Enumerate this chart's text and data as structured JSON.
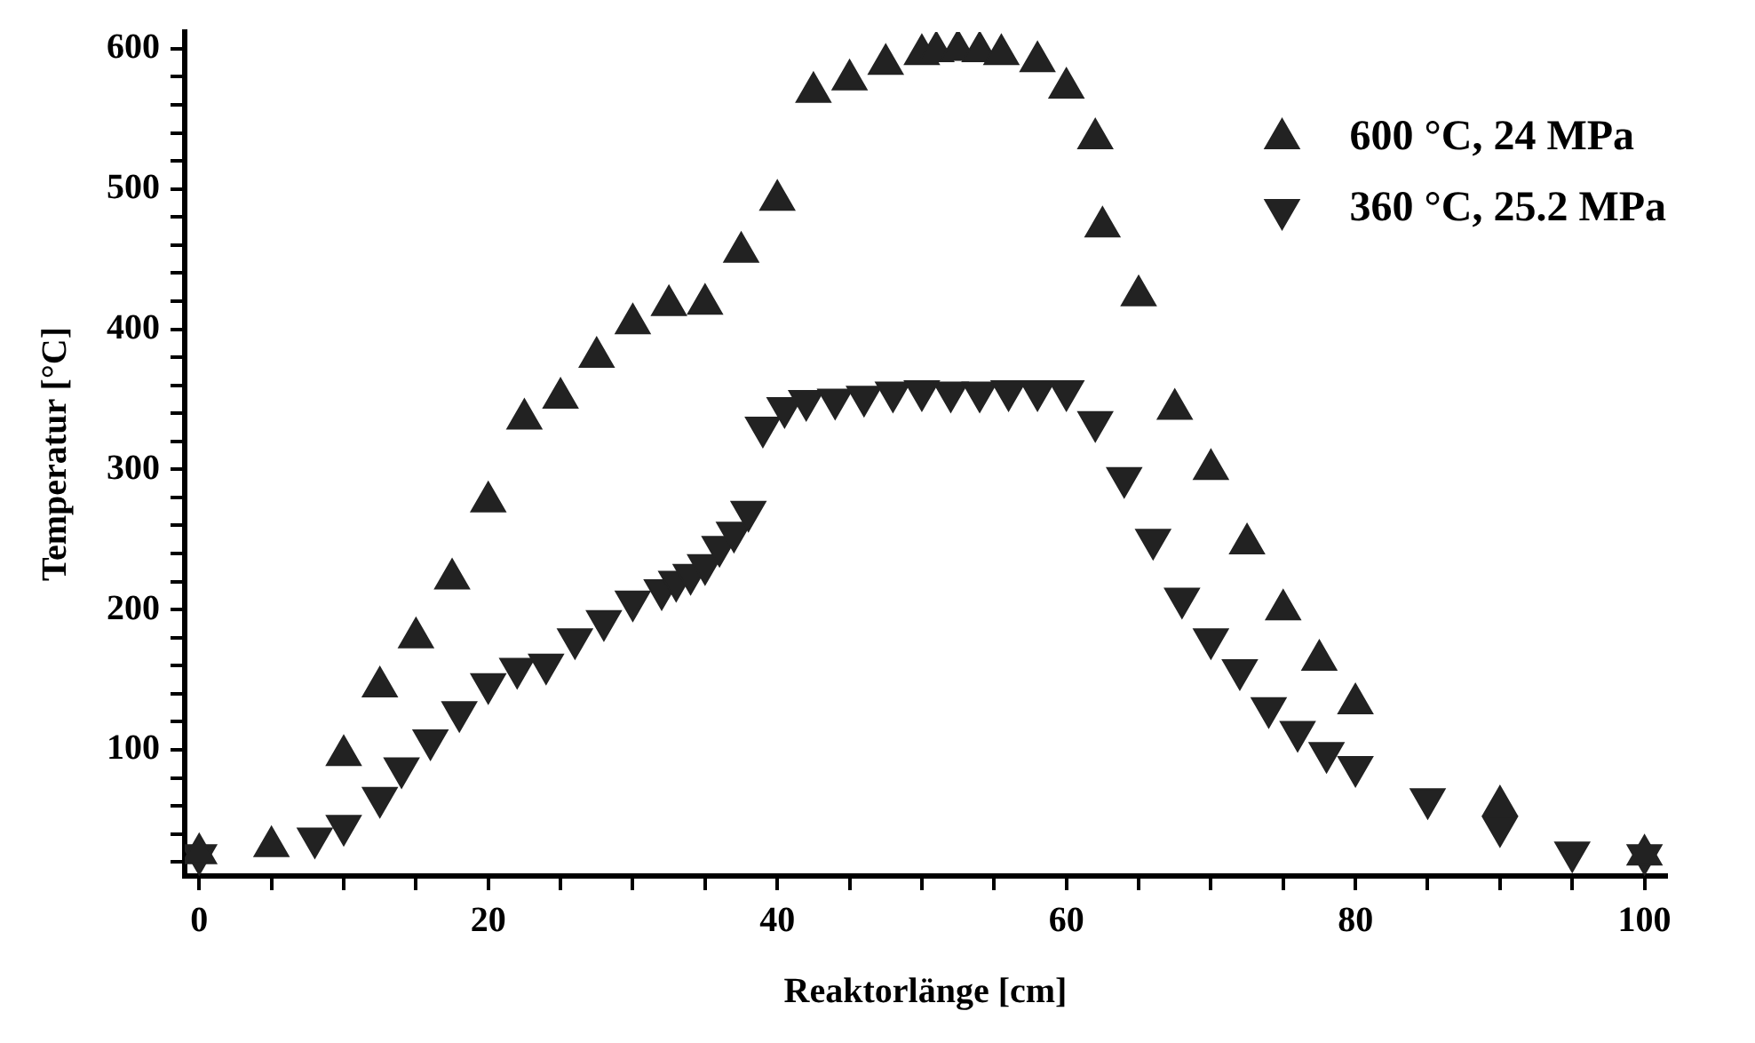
{
  "chart_data": {
    "type": "scatter",
    "xlabel": "Reaktorlänge [cm]",
    "ylabel": "Temperatur [°C]",
    "xlim": [
      -1,
      101.5
    ],
    "ylim": [
      10,
      612
    ],
    "xticks": [
      0,
      {
        "value": 5,
        "label": null
      },
      {
        "value": 10,
        "label": null
      },
      {
        "value": 15,
        "label": null
      },
      20,
      {
        "value": 25,
        "label": null
      },
      {
        "value": 30,
        "label": null
      },
      {
        "value": 35,
        "label": null
      },
      40,
      {
        "value": 45,
        "label": null
      },
      {
        "value": 50,
        "label": null
      },
      {
        "value": 55,
        "label": null
      },
      60,
      {
        "value": 65,
        "label": null
      },
      {
        "value": 70,
        "label": null
      },
      {
        "value": 75,
        "label": null
      },
      80,
      {
        "value": 85,
        "label": null
      },
      {
        "value": 90,
        "label": null
      },
      {
        "value": 95,
        "label": null
      },
      100
    ],
    "yticks": [
      {
        "value": 20,
        "label": null
      },
      {
        "value": 40,
        "label": null
      },
      {
        "value": 60,
        "label": null
      },
      {
        "value": 80,
        "label": null
      },
      100,
      {
        "value": 120,
        "label": null
      },
      {
        "value": 140,
        "label": null
      },
      {
        "value": 160,
        "label": null
      },
      {
        "value": 180,
        "label": null
      },
      200,
      {
        "value": 220,
        "label": null
      },
      {
        "value": 240,
        "label": null
      },
      {
        "value": 260,
        "label": null
      },
      {
        "value": 280,
        "label": null
      },
      300,
      {
        "value": 320,
        "label": null
      },
      {
        "value": 340,
        "label": null
      },
      {
        "value": 360,
        "label": null
      },
      {
        "value": 380,
        "label": null
      },
      400,
      {
        "value": 420,
        "label": null
      },
      {
        "value": 440,
        "label": null
      },
      {
        "value": 460,
        "label": null
      },
      {
        "value": 480,
        "label": null
      },
      500,
      {
        "value": 520,
        "label": null
      },
      {
        "value": 540,
        "label": null
      },
      {
        "value": 560,
        "label": null
      },
      {
        "value": 580,
        "label": null
      },
      600
    ],
    "grid": false,
    "legend": "top right",
    "marker": "triangle",
    "series": [
      {
        "name": "600 °C, 24 MPa",
        "color": "#222222",
        "x": [
          0,
          5,
          10,
          12.5,
          15,
          17.5,
          20,
          22.5,
          25,
          27.5,
          30,
          32.5,
          35,
          37.5,
          40,
          42.5,
          45,
          47.5,
          50,
          51,
          52.5,
          54,
          55.5,
          58,
          60,
          62,
          62.5,
          65,
          67.5,
          70,
          72.5,
          75,
          77.5,
          80,
          90,
          100
        ],
        "values": [
          26,
          31,
          96,
          145,
          180,
          222,
          277,
          336,
          351,
          380,
          404,
          417,
          418,
          455,
          492,
          569,
          578,
          589,
          596,
          598,
          599,
          598,
          596,
          591,
          572,
          536,
          473,
          424,
          343,
          300,
          247,
          200,
          164,
          133,
          60,
          25
        ]
      },
      {
        "name": "360 °C, 25.2 MPa",
        "color": "#222222",
        "x": [
          0,
          8,
          10,
          12.5,
          14,
          16,
          18,
          20,
          22,
          24,
          26,
          28,
          30,
          32,
          33,
          34,
          35,
          36,
          37,
          38,
          39,
          40.5,
          42,
          44,
          46,
          48,
          50,
          52,
          54,
          56,
          58,
          60,
          62,
          64,
          66,
          68,
          70,
          72,
          74,
          76,
          78,
          80,
          85,
          90,
          95,
          100
        ],
        "values": [
          25,
          37,
          46,
          66,
          87,
          107,
          127,
          147,
          158,
          161,
          179,
          192,
          206,
          214,
          220,
          225,
          232,
          245,
          255,
          270,
          330,
          344,
          349,
          350,
          352,
          355,
          356,
          355,
          355,
          356,
          356,
          356,
          334,
          294,
          250,
          208,
          179,
          157,
          130,
          113,
          98,
          88,
          65,
          45,
          27,
          25
        ]
      }
    ]
  }
}
